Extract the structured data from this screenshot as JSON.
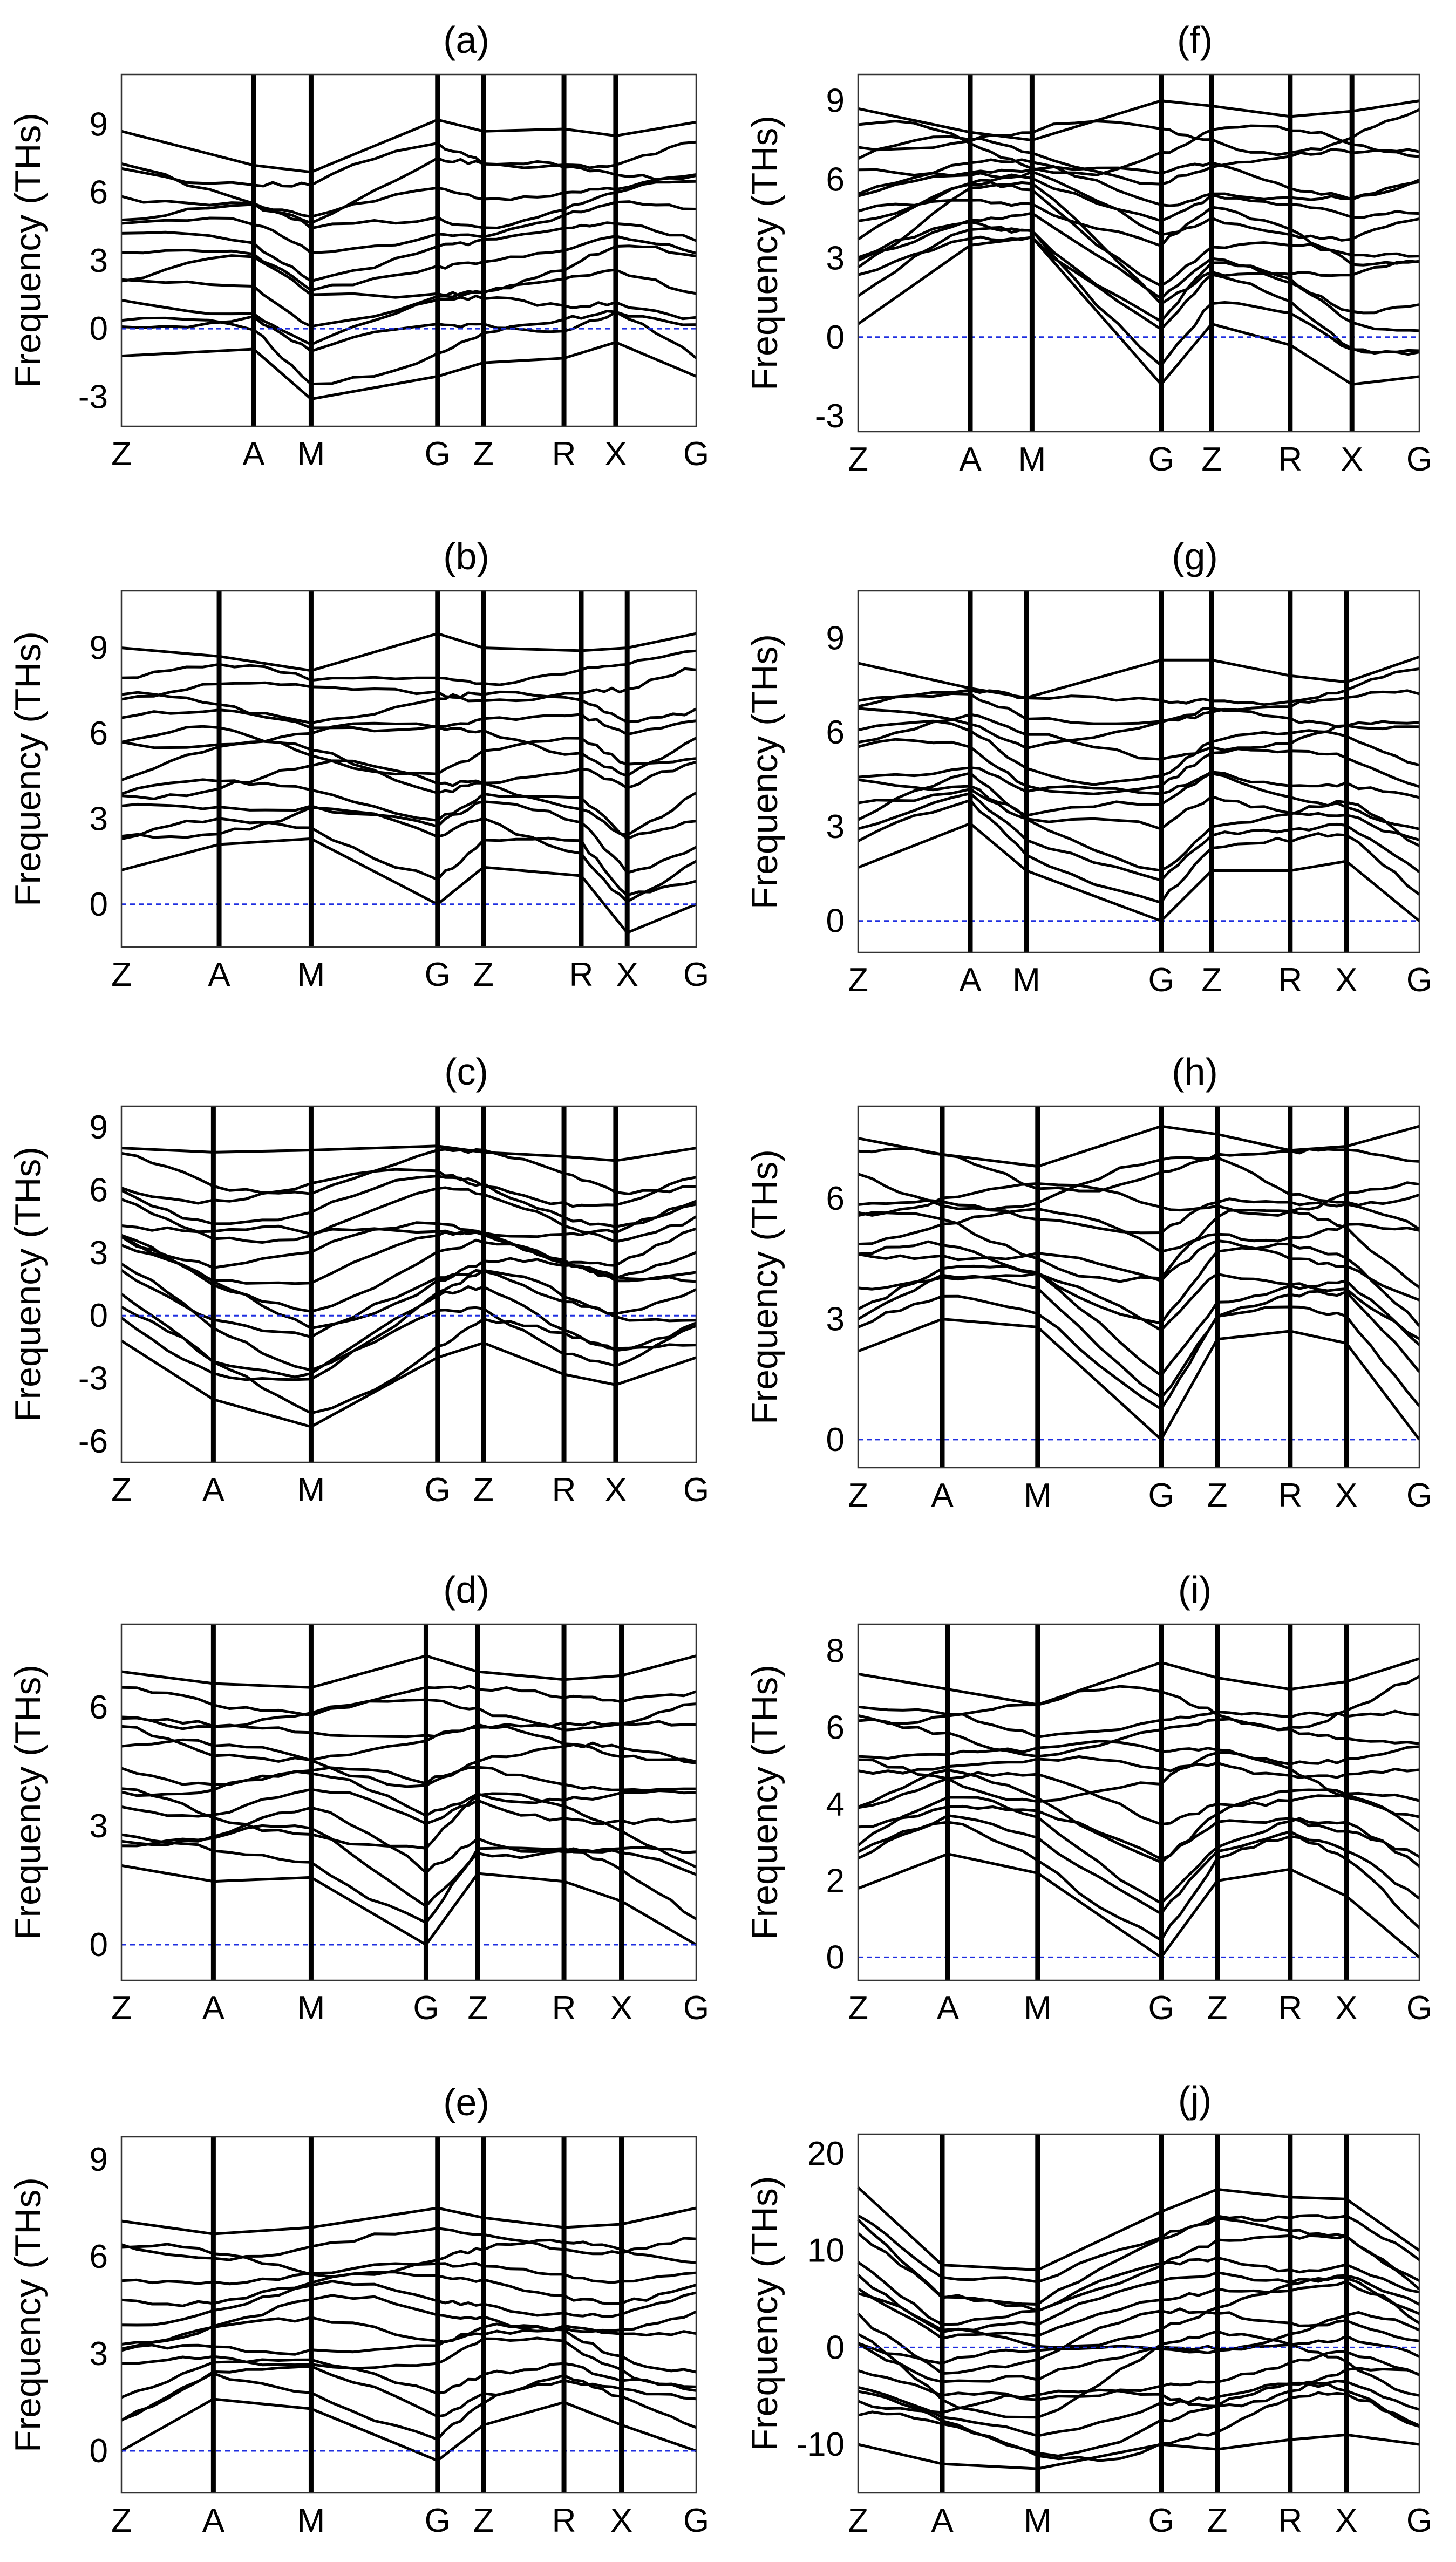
{
  "figure": {
    "description_free": true,
    "kpath_tick_order": [
      "Z",
      "A",
      "M",
      "G",
      "Z",
      "R",
      "X",
      "G"
    ]
  },
  "chart_data": [
    {
      "id": "a",
      "title": "(a)",
      "type": "line",
      "ylabel": "Frequency (THs)",
      "ylim": [
        -4.3,
        11.2
      ],
      "yticks": [
        9,
        6,
        3,
        0,
        -3
      ],
      "kpath_labels": [
        "Z",
        "A",
        "M",
        "G",
        "Z",
        "R",
        "X",
        "G"
      ],
      "kpath_pos": [
        0,
        0.23,
        0.33,
        0.55,
        0.63,
        0.77,
        0.86,
        1.0
      ],
      "band_anchors": {
        "high": [
          [
            0,
            8.7
          ],
          [
            0.23,
            7.2
          ],
          [
            0.33,
            6.9
          ],
          [
            0.55,
            9.2
          ],
          [
            0.63,
            8.7
          ],
          [
            0.77,
            8.8
          ],
          [
            0.86,
            8.5
          ],
          [
            1,
            9.1
          ]
        ],
        "low": [
          [
            0,
            -1.2
          ],
          [
            0.23,
            -0.9
          ],
          [
            0.33,
            -3.1
          ],
          [
            0.55,
            -2.1
          ],
          [
            0.63,
            -1.5
          ],
          [
            0.77,
            -1.3
          ],
          [
            0.86,
            -0.6
          ],
          [
            1,
            -2.1
          ]
        ]
      },
      "bands": 14,
      "seed": 11
    },
    {
      "id": "b",
      "title": "(b)",
      "type": "line",
      "ylabel": "Frequency (THs)",
      "ylim": [
        -1.5,
        11
      ],
      "yticks": [
        9,
        6,
        3,
        0
      ],
      "kpath_labels": [
        "Z",
        "A",
        "M",
        "G",
        "Z",
        "R",
        "X",
        "G"
      ],
      "kpath_pos": [
        0,
        0.17,
        0.33,
        0.55,
        0.63,
        0.8,
        0.88,
        1.0
      ],
      "band_anchors": {
        "high": [
          [
            0,
            9.0
          ],
          [
            0.17,
            8.7
          ],
          [
            0.33,
            8.2
          ],
          [
            0.55,
            9.5
          ],
          [
            0.63,
            9.0
          ],
          [
            0.8,
            8.9
          ],
          [
            0.88,
            9.0
          ],
          [
            1,
            9.5
          ]
        ],
        "low": [
          [
            0,
            1.2
          ],
          [
            0.17,
            2.1
          ],
          [
            0.33,
            2.3
          ],
          [
            0.55,
            0.0
          ],
          [
            0.63,
            1.3
          ],
          [
            0.8,
            1.0
          ],
          [
            0.88,
            -1.0
          ],
          [
            1,
            0.0
          ]
        ]
      },
      "bands": 14,
      "seed": 23
    },
    {
      "id": "c",
      "title": "(c)",
      "type": "line",
      "ylabel": "Frequency (THs)",
      "ylim": [
        -7,
        10
      ],
      "yticks": [
        9,
        6,
        3,
        0,
        -3,
        -6
      ],
      "kpath_labels": [
        "Z",
        "A",
        "M",
        "G",
        "Z",
        "R",
        "X",
        "G"
      ],
      "kpath_pos": [
        0,
        0.16,
        0.33,
        0.55,
        0.63,
        0.77,
        0.86,
        1.0
      ],
      "band_anchors": {
        "high": [
          [
            0,
            8.0
          ],
          [
            0.16,
            7.8
          ],
          [
            0.33,
            7.9
          ],
          [
            0.55,
            8.1
          ],
          [
            0.63,
            7.8
          ],
          [
            0.77,
            7.6
          ],
          [
            0.86,
            7.4
          ],
          [
            1,
            8.0
          ]
        ],
        "low": [
          [
            0,
            -1.2
          ],
          [
            0.16,
            -4.0
          ],
          [
            0.33,
            -5.3
          ],
          [
            0.55,
            -2.0
          ],
          [
            0.63,
            -1.3
          ],
          [
            0.77,
            -2.8
          ],
          [
            0.86,
            -3.3
          ],
          [
            1,
            -2.0
          ]
        ]
      },
      "bands": 16,
      "seed": 37
    },
    {
      "id": "d",
      "title": "(d)",
      "type": "line",
      "ylabel": "Frequency (THs)",
      "ylim": [
        -0.9,
        8.1
      ],
      "yticks": [
        6,
        3,
        0
      ],
      "kpath_labels": [
        "Z",
        "A",
        "M",
        "G",
        "Z",
        "R",
        "X",
        "G"
      ],
      "kpath_pos": [
        0,
        0.16,
        0.33,
        0.53,
        0.62,
        0.77,
        0.87,
        1.0
      ],
      "band_anchors": {
        "high": [
          [
            0,
            6.9
          ],
          [
            0.16,
            6.6
          ],
          [
            0.33,
            6.5
          ],
          [
            0.53,
            7.3
          ],
          [
            0.62,
            6.9
          ],
          [
            0.77,
            6.7
          ],
          [
            0.87,
            6.8
          ],
          [
            1,
            7.3
          ]
        ],
        "low": [
          [
            0,
            2.0
          ],
          [
            0.16,
            1.6
          ],
          [
            0.33,
            1.7
          ],
          [
            0.53,
            0.0
          ],
          [
            0.62,
            1.8
          ],
          [
            0.77,
            1.6
          ],
          [
            0.87,
            1.1
          ],
          [
            1,
            0.0
          ]
        ]
      },
      "bands": 14,
      "seed": 41
    },
    {
      "id": "e",
      "title": "(e)",
      "type": "line",
      "ylabel": "Frequency (THs)",
      "ylim": [
        -1.3,
        9.7
      ],
      "yticks": [
        9,
        6,
        3,
        0
      ],
      "kpath_labels": [
        "Z",
        "A",
        "M",
        "G",
        "Z",
        "R",
        "X",
        "G"
      ],
      "kpath_pos": [
        0,
        0.16,
        0.33,
        0.55,
        0.63,
        0.77,
        0.87,
        1.0
      ],
      "band_anchors": {
        "high": [
          [
            0,
            7.1
          ],
          [
            0.16,
            6.7
          ],
          [
            0.33,
            6.9
          ],
          [
            0.55,
            7.5
          ],
          [
            0.63,
            7.2
          ],
          [
            0.77,
            6.9
          ],
          [
            0.87,
            7.0
          ],
          [
            1,
            7.5
          ]
        ],
        "low": [
          [
            0,
            0.0
          ],
          [
            0.16,
            1.6
          ],
          [
            0.33,
            1.3
          ],
          [
            0.55,
            -0.3
          ],
          [
            0.63,
            0.8
          ],
          [
            0.77,
            1.5
          ],
          [
            0.87,
            0.8
          ],
          [
            1,
            0.0
          ]
        ]
      },
      "bands": 14,
      "seed": 53
    },
    {
      "id": "f",
      "title": "(f)",
      "type": "line",
      "ylabel": "Frequency (THs)",
      "ylim": [
        -3.6,
        10
      ],
      "yticks": [
        9,
        6,
        3,
        0,
        -3
      ],
      "kpath_labels": [
        "Z",
        "A",
        "M",
        "G",
        "Z",
        "R",
        "X",
        "G"
      ],
      "kpath_pos": [
        0,
        0.2,
        0.31,
        0.54,
        0.63,
        0.77,
        0.88,
        1.0
      ],
      "band_anchors": {
        "high": [
          [
            0,
            8.7
          ],
          [
            0.2,
            7.8
          ],
          [
            0.31,
            7.5
          ],
          [
            0.54,
            9.0
          ],
          [
            0.63,
            8.8
          ],
          [
            0.77,
            8.4
          ],
          [
            0.88,
            8.6
          ],
          [
            1,
            9.0
          ]
        ],
        "low": [
          [
            0,
            0.5
          ],
          [
            0.2,
            3.5
          ],
          [
            0.31,
            3.8
          ],
          [
            0.54,
            -1.8
          ],
          [
            0.63,
            0.5
          ],
          [
            0.77,
            -0.3
          ],
          [
            0.88,
            -1.8
          ],
          [
            1,
            -1.5
          ]
        ]
      },
      "bands": 16,
      "seed": 61
    },
    {
      "id": "g",
      "title": "(g)",
      "type": "line",
      "ylabel": "Frequency (THs)",
      "ylim": [
        -1,
        10.5
      ],
      "yticks": [
        9,
        6,
        3,
        0
      ],
      "kpath_labels": [
        "Z",
        "A",
        "M",
        "G",
        "Z",
        "R",
        "X",
        "G"
      ],
      "kpath_pos": [
        0,
        0.2,
        0.3,
        0.54,
        0.63,
        0.77,
        0.87,
        1.0
      ],
      "band_anchors": {
        "high": [
          [
            0,
            8.2
          ],
          [
            0.2,
            7.4
          ],
          [
            0.3,
            7.1
          ],
          [
            0.54,
            8.3
          ],
          [
            0.63,
            8.3
          ],
          [
            0.77,
            7.8
          ],
          [
            0.87,
            7.6
          ],
          [
            1,
            8.4
          ]
        ],
        "low": [
          [
            0,
            1.7
          ],
          [
            0.2,
            3.1
          ],
          [
            0.3,
            1.6
          ],
          [
            0.54,
            0.0
          ],
          [
            0.63,
            1.6
          ],
          [
            0.77,
            1.6
          ],
          [
            0.87,
            1.9
          ],
          [
            1,
            0.0
          ]
        ]
      },
      "bands": 14,
      "seed": 71
    },
    {
      "id": "h",
      "title": "(h)",
      "type": "line",
      "ylabel": "Frequency (THs)",
      "ylim": [
        -0.7,
        8.3
      ],
      "yticks": [
        6,
        3,
        0
      ],
      "kpath_labels": [
        "Z",
        "A",
        "M",
        "G",
        "Z",
        "R",
        "X",
        "G"
      ],
      "kpath_pos": [
        0,
        0.15,
        0.32,
        0.54,
        0.64,
        0.77,
        0.87,
        1.0
      ],
      "band_anchors": {
        "high": [
          [
            0,
            7.5
          ],
          [
            0.15,
            7.1
          ],
          [
            0.32,
            6.8
          ],
          [
            0.54,
            7.8
          ],
          [
            0.64,
            7.6
          ],
          [
            0.77,
            7.2
          ],
          [
            0.87,
            7.3
          ],
          [
            1,
            7.8
          ]
        ],
        "low": [
          [
            0,
            2.2
          ],
          [
            0.15,
            3.0
          ],
          [
            0.32,
            2.8
          ],
          [
            0.54,
            0.0
          ],
          [
            0.64,
            2.5
          ],
          [
            0.77,
            2.7
          ],
          [
            0.87,
            2.4
          ],
          [
            1,
            0.0
          ]
        ]
      },
      "bands": 14,
      "seed": 83
    },
    {
      "id": "i",
      "title": "(i)",
      "type": "line",
      "ylabel": "Frequency (THs)",
      "ylim": [
        -0.6,
        8.7
      ],
      "yticks": [
        8,
        6,
        4,
        2,
        0
      ],
      "kpath_labels": [
        "Z",
        "A",
        "M",
        "G",
        "Z",
        "R",
        "X",
        "G"
      ],
      "kpath_pos": [
        0,
        0.16,
        0.32,
        0.54,
        0.64,
        0.77,
        0.87,
        1.0
      ],
      "band_anchors": {
        "high": [
          [
            0,
            7.4
          ],
          [
            0.16,
            7.0
          ],
          [
            0.32,
            6.6
          ],
          [
            0.54,
            7.7
          ],
          [
            0.64,
            7.3
          ],
          [
            0.77,
            7.0
          ],
          [
            0.87,
            7.2
          ],
          [
            1,
            7.8
          ]
        ],
        "low": [
          [
            0,
            1.8
          ],
          [
            0.16,
            2.7
          ],
          [
            0.32,
            2.2
          ],
          [
            0.54,
            0.0
          ],
          [
            0.64,
            2.0
          ],
          [
            0.77,
            2.3
          ],
          [
            0.87,
            1.6
          ],
          [
            1,
            0.0
          ]
        ]
      },
      "bands": 14,
      "seed": 97
    },
    {
      "id": "j",
      "title": "(j)",
      "type": "line",
      "ylabel": "Frequency (THs)",
      "ylim": [
        -15,
        22
      ],
      "yticks": [
        20,
        10,
        0,
        -10
      ],
      "kpath_labels": [
        "Z",
        "A",
        "M",
        "G",
        "Z",
        "R",
        "X",
        "G"
      ],
      "kpath_pos": [
        0,
        0.15,
        0.32,
        0.54,
        0.64,
        0.77,
        0.87,
        1.0
      ],
      "band_anchors": {
        "high": [
          [
            0,
            16.5
          ],
          [
            0.15,
            8.5
          ],
          [
            0.32,
            8.0
          ],
          [
            0.54,
            14.0
          ],
          [
            0.64,
            16.3
          ],
          [
            0.77,
            15.5
          ],
          [
            0.87,
            15.3
          ],
          [
            1,
            10.0
          ]
        ],
        "low": [
          [
            0,
            -10.0
          ],
          [
            0.15,
            -12.0
          ],
          [
            0.32,
            -12.5
          ],
          [
            0.54,
            -10.0
          ],
          [
            0.64,
            -10.5
          ],
          [
            0.77,
            -9.5
          ],
          [
            0.87,
            -9.0
          ],
          [
            1,
            -10.0
          ]
        ]
      },
      "bands": 18,
      "seed": 113
    }
  ]
}
